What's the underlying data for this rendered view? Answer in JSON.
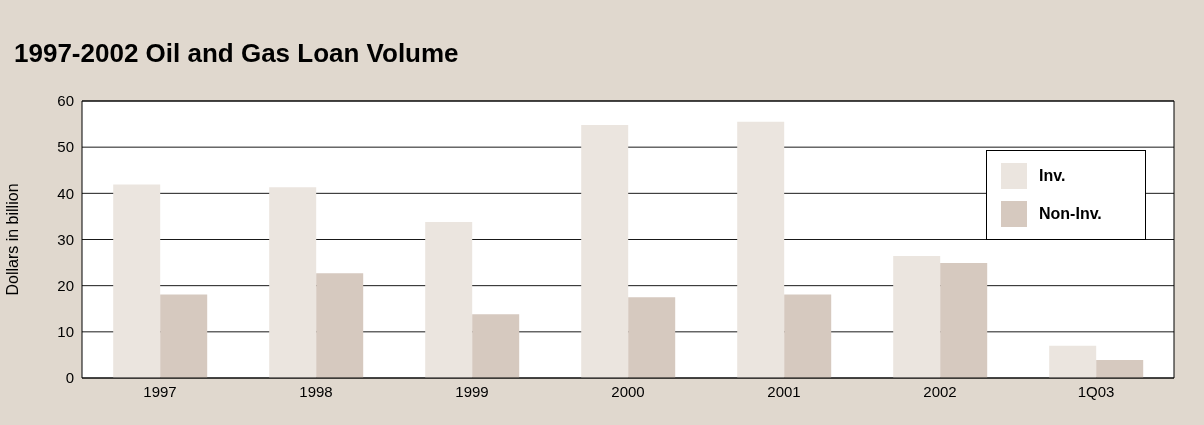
{
  "chart_data": {
    "type": "bar",
    "title": "1997-2002 Oil and Gas Loan Volume",
    "ylabel": "Dollars in billion",
    "categories": [
      "1997",
      "1998",
      "1999",
      "2000",
      "2001",
      "2002",
      "1Q03"
    ],
    "series": [
      {
        "name": "Inv.",
        "color": "#ebe5df",
        "values": [
          41.9,
          41.3,
          33.8,
          54.8,
          55.5,
          26.4,
          7.0
        ]
      },
      {
        "name": "Non-Inv.",
        "color": "#d6c9bf",
        "values": [
          18.1,
          22.7,
          13.8,
          17.5,
          18.1,
          24.9,
          3.9
        ]
      }
    ],
    "ylim": [
      0,
      60
    ],
    "yticks": [
      0,
      10,
      20,
      30,
      40,
      50,
      60
    ],
    "grid": "y",
    "legend": "top right"
  }
}
